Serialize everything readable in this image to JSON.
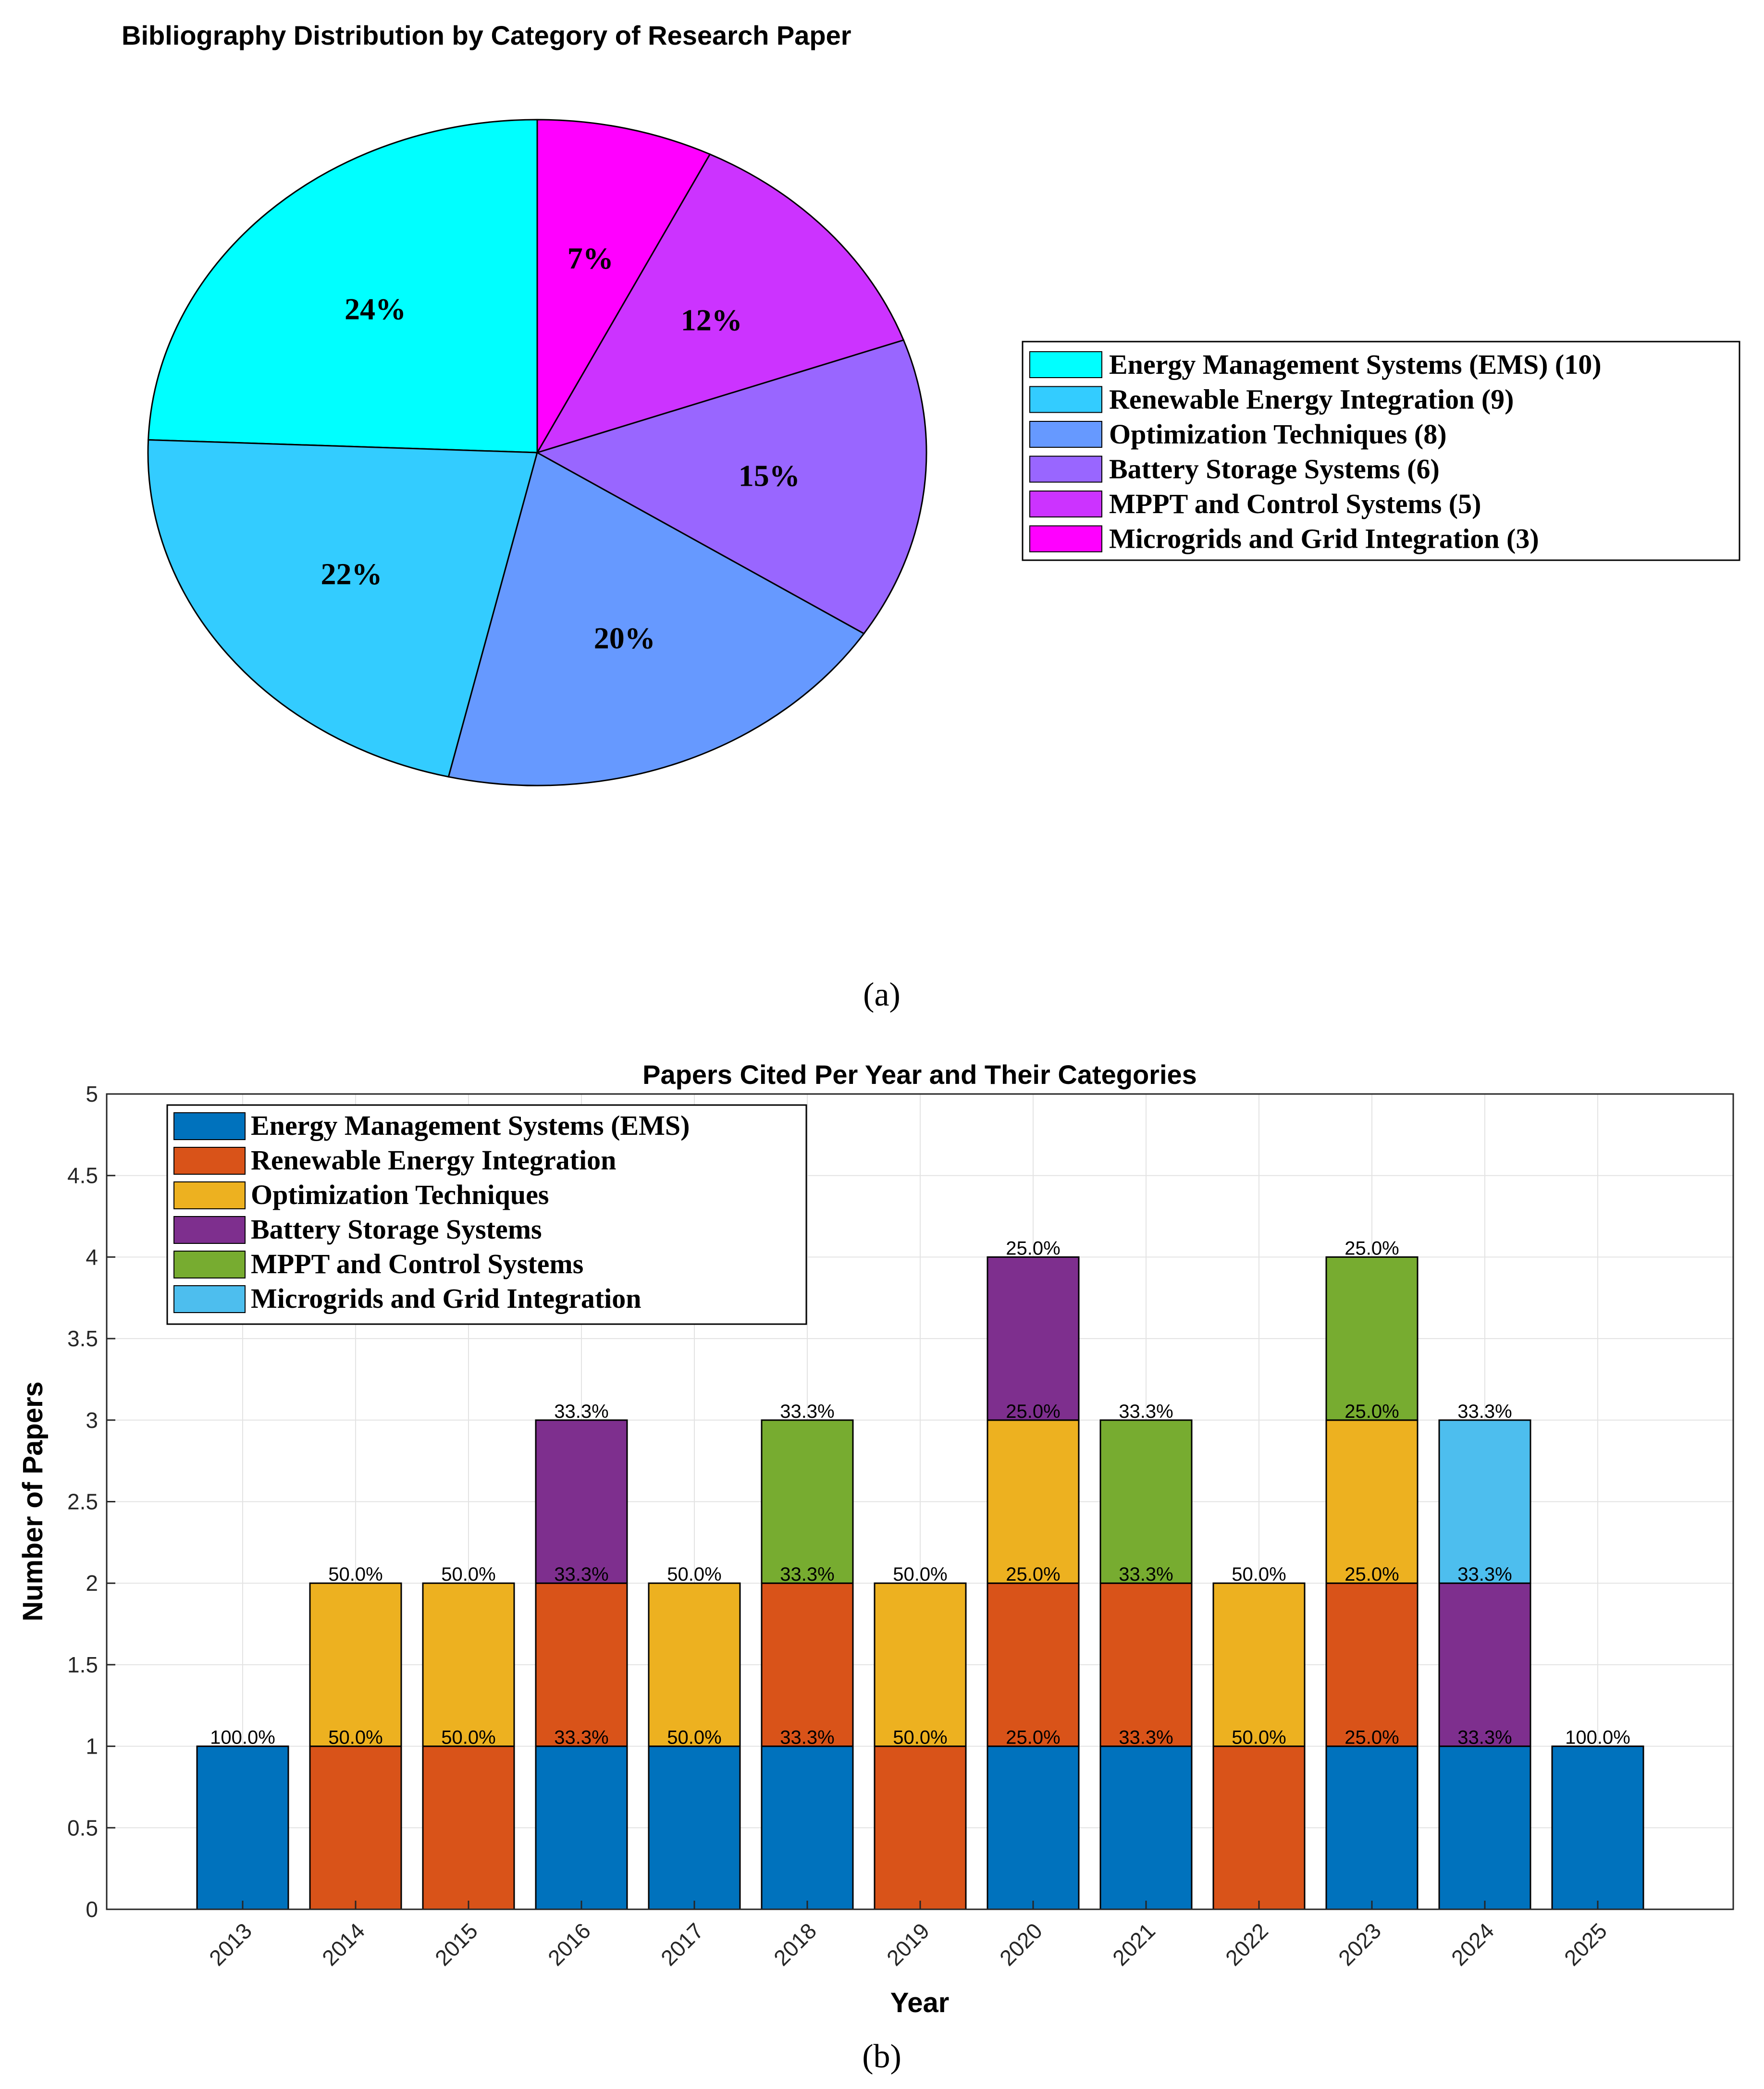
{
  "caption_a": "(a)",
  "caption_b": "(b)",
  "chart_data": [
    {
      "type": "pie",
      "title": "Bibliography Distribution by Category of Research Paper",
      "slices": [
        {
          "label": "Energy Management Systems (EMS) (10)",
          "value": 10,
          "pct_label": "24%",
          "color": "#00FFFF"
        },
        {
          "label": "Renewable Energy Integration (9)",
          "value": 9,
          "pct_label": "22%",
          "color": "#33CCFF"
        },
        {
          "label": "Optimization Techniques (8)",
          "value": 8,
          "pct_label": "20%",
          "color": "#6699FF"
        },
        {
          "label": "Battery Storage Systems (6)",
          "value": 6,
          "pct_label": "15%",
          "color": "#9966FF"
        },
        {
          "label": "MPPT and Control Systems (5)",
          "value": 5,
          "pct_label": "12%",
          "color": "#CC33FF"
        },
        {
          "label": "Microgrids and Grid Integration (3)",
          "value": 3,
          "pct_label": "7%",
          "color": "#FF00FF"
        }
      ],
      "legend_position": "right"
    },
    {
      "type": "bar",
      "stacked": true,
      "title": "Papers Cited Per Year and Their Categories",
      "xlabel": "Year",
      "ylabel": "Number of Papers",
      "ylim": [
        0,
        5
      ],
      "yticks": [
        "0",
        "0.5",
        "1",
        "1.5",
        "2",
        "2.5",
        "3",
        "3.5",
        "4",
        "4.5",
        "5"
      ],
      "grid": true,
      "legend_position": "top-left",
      "categories": [
        "2013",
        "2014",
        "2015",
        "2016",
        "2017",
        "2018",
        "2019",
        "2020",
        "2021",
        "2022",
        "2023",
        "2024",
        "2025"
      ],
      "series": [
        {
          "name": "Energy Management Systems (EMS)",
          "color": "#0072BD",
          "values": [
            1,
            0,
            0,
            1,
            1,
            1,
            0,
            1,
            1,
            0,
            1,
            1,
            1
          ]
        },
        {
          "name": "Renewable Energy Integration",
          "color": "#D95319",
          "values": [
            0,
            1,
            1,
            1,
            0,
            1,
            1,
            1,
            1,
            1,
            1,
            0,
            0
          ]
        },
        {
          "name": "Optimization Techniques",
          "color": "#EDB120",
          "values": [
            0,
            1,
            1,
            0,
            1,
            0,
            1,
            1,
            0,
            1,
            1,
            0,
            0
          ]
        },
        {
          "name": "Battery Storage Systems",
          "color": "#7E2F8E",
          "values": [
            0,
            0,
            0,
            1,
            0,
            0,
            0,
            1,
            0,
            0,
            0,
            1,
            0
          ]
        },
        {
          "name": "MPPT and Control Systems",
          "color": "#77AC30",
          "values": [
            0,
            0,
            0,
            0,
            0,
            1,
            0,
            0,
            1,
            0,
            1,
            0,
            0
          ]
        },
        {
          "name": "Microgrids and Grid Integration",
          "color": "#4DBEEE",
          "values": [
            0,
            0,
            0,
            0,
            0,
            0,
            0,
            0,
            0,
            0,
            0,
            1,
            0
          ]
        }
      ],
      "annotations": [
        {
          "x": "2013",
          "y": 1,
          "text": "100.0%"
        },
        {
          "x": "2014",
          "y": 1,
          "text": "50.0%"
        },
        {
          "x": "2014",
          "y": 2,
          "text": "50.0%"
        },
        {
          "x": "2015",
          "y": 1,
          "text": "50.0%"
        },
        {
          "x": "2015",
          "y": 2,
          "text": "50.0%"
        },
        {
          "x": "2016",
          "y": 1,
          "text": "33.3%"
        },
        {
          "x": "2016",
          "y": 2,
          "text": "33.3%"
        },
        {
          "x": "2016",
          "y": 3,
          "text": "33.3%"
        },
        {
          "x": "2017",
          "y": 1,
          "text": "50.0%"
        },
        {
          "x": "2017",
          "y": 2,
          "text": "50.0%"
        },
        {
          "x": "2018",
          "y": 1,
          "text": "33.3%"
        },
        {
          "x": "2018",
          "y": 2,
          "text": "33.3%"
        },
        {
          "x": "2018",
          "y": 3,
          "text": "33.3%"
        },
        {
          "x": "2019",
          "y": 1,
          "text": "50.0%"
        },
        {
          "x": "2019",
          "y": 2,
          "text": "50.0%"
        },
        {
          "x": "2020",
          "y": 1,
          "text": "25.0%"
        },
        {
          "x": "2020",
          "y": 2,
          "text": "25.0%"
        },
        {
          "x": "2020",
          "y": 3,
          "text": "25.0%"
        },
        {
          "x": "2020",
          "y": 4,
          "text": "25.0%"
        },
        {
          "x": "2021",
          "y": 1,
          "text": "33.3%"
        },
        {
          "x": "2021",
          "y": 2,
          "text": "33.3%"
        },
        {
          "x": "2021",
          "y": 3,
          "text": "33.3%"
        },
        {
          "x": "2022",
          "y": 1,
          "text": "50.0%"
        },
        {
          "x": "2022",
          "y": 2,
          "text": "50.0%"
        },
        {
          "x": "2023",
          "y": 1,
          "text": "25.0%"
        },
        {
          "x": "2023",
          "y": 2,
          "text": "25.0%"
        },
        {
          "x": "2023",
          "y": 3,
          "text": "25.0%"
        },
        {
          "x": "2023",
          "y": 4,
          "text": "25.0%"
        },
        {
          "x": "2024",
          "y": 1,
          "text": "33.3%"
        },
        {
          "x": "2024",
          "y": 2,
          "text": "33.3%"
        },
        {
          "x": "2024",
          "y": 3,
          "text": "33.3%"
        },
        {
          "x": "2025",
          "y": 1,
          "text": "100.0%"
        }
      ]
    }
  ]
}
